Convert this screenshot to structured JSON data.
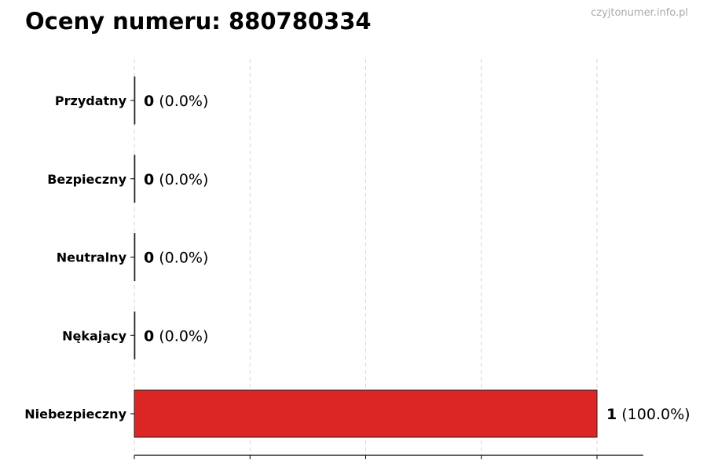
{
  "chart_data": {
    "type": "bar",
    "orientation": "horizontal",
    "title": "Oceny numeru: 880780334",
    "watermark": "czyjtonumer.info.pl",
    "categories": [
      "Przydatny",
      "Bezpieczny",
      "Neutralny",
      "Nękający",
      "Niebezpieczny"
    ],
    "values": [
      0,
      0,
      0,
      0,
      1
    ],
    "percent_labels": [
      "(0.0%)",
      "(0.0%)",
      "(0.0%)",
      "(0.0%)",
      "(100.0%)"
    ],
    "colors": [
      "#2ca02c",
      "#1f77b4",
      "#7f7f7f",
      "#ff7f0e",
      "#dc2626"
    ],
    "xlim": [
      0,
      1.1
    ],
    "xticks": [
      0,
      0.25,
      0.5,
      0.75,
      1.0
    ],
    "xtick_labels_shown": false,
    "grid": "x-dashed",
    "xlabel": "",
    "ylabel": ""
  }
}
